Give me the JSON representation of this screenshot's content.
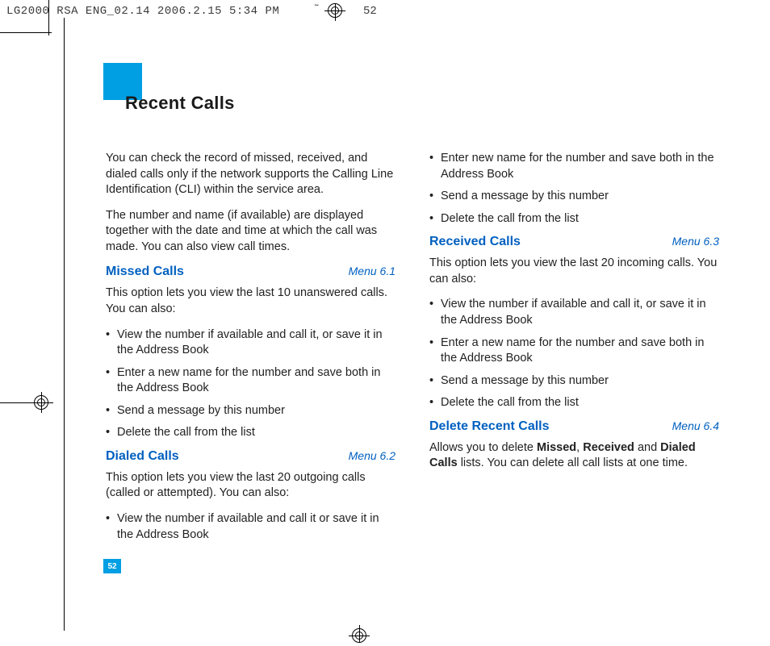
{
  "print": {
    "slug": "LG2000 RSA ENG_02.14  2006.2.15 5:34 PM",
    "tilde": "˜",
    "top_page_num": "52"
  },
  "page": {
    "number": "52",
    "title": "Recent Calls",
    "accent_color": "#009fe3",
    "heading_color": "#0060c0"
  },
  "intro": {
    "p1": "You can check the record of missed, received, and dialed calls only if the network supports the Calling Line Identification (CLI) within the service area.",
    "p2": "The number and name (if available) are displayed together with the date and time at which the call was made. You can also view call times."
  },
  "sections": {
    "missed": {
      "title": "Missed Calls",
      "menu": "Menu 6.1",
      "lead": "This option lets you view the last 10 unanswered calls. You can also:",
      "items": [
        "View the number if available and call it, or save it in the Address Book",
        "Enter a new name for the number and save both in the Address Book",
        "Send a message by this number",
        "Delete the call from the list"
      ]
    },
    "dialed": {
      "title": "Dialed Calls",
      "menu": "Menu 6.2",
      "lead": "This option lets you view the last 20 outgoing calls (called or attempted). You can also:",
      "items": [
        "View the number if available and call it or save it in the Address Book",
        "Enter new name for the number and save both in the Address Book",
        "Send a message by this number",
        "Delete the call from the list"
      ]
    },
    "received": {
      "title": "Received Calls",
      "menu": "Menu 6.3",
      "lead": "This option lets you view the last 20 incoming calls. You can also:",
      "items": [
        "View the number if available and call it, or save it in the Address Book",
        "Enter a new name for the number and save both in the Address Book",
        "Send a message by this number",
        "Delete the call from the list"
      ]
    },
    "delete": {
      "title": "Delete Recent Calls",
      "menu": "Menu 6.4",
      "lead_pre": "Allows you to delete ",
      "b1": "Missed",
      "sep1": ", ",
      "b2": "Received",
      "sep2": " and ",
      "b3": "Dialed Calls",
      "lead_post": " lists. You can delete all call lists at one time."
    }
  }
}
